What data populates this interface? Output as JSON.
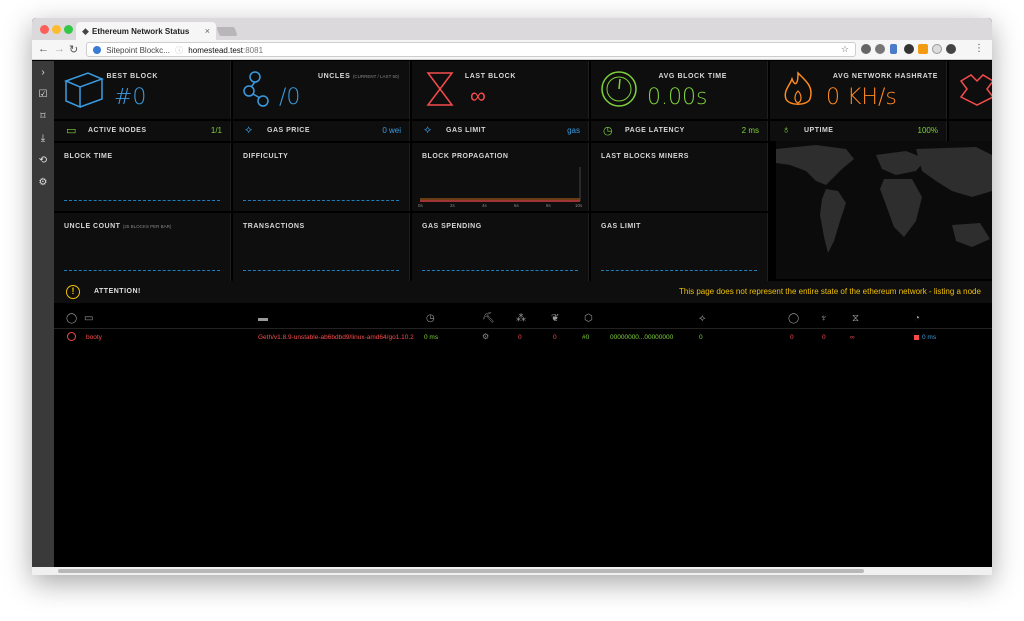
{
  "browser": {
    "tab_title": "Ethereum Network Status",
    "tab_close": "×",
    "site_chip": "Sitepoint Blockc...",
    "url_host": "homestead.test",
    "url_port": ":8081"
  },
  "stats": {
    "best_block": {
      "label": "BEST BLOCK",
      "value": "#0"
    },
    "uncles": {
      "label": "UNCLES",
      "sublabel": "(CURRENT / LAST 50)",
      "value": "/0"
    },
    "last_block": {
      "label": "LAST BLOCK",
      "value": "∞"
    },
    "avg_block_time": {
      "label": "AVG BLOCK TIME",
      "value": "0.00s"
    },
    "avg_hashrate": {
      "label": "AVG NETWORK HASHRATE",
      "value": "0 KH/s"
    }
  },
  "small_stats": {
    "active_nodes": {
      "label": "ACTIVE NODES",
      "value": "1/1"
    },
    "gas_price": {
      "label": "GAS PRICE",
      "value": "0 wei"
    },
    "gas_limit": {
      "label": "GAS LIMIT",
      "value": "gas"
    },
    "page_latency": {
      "label": "PAGE LATENCY",
      "value": "2 ms"
    },
    "uptime": {
      "label": "UPTIME",
      "value": "100%"
    }
  },
  "charts": {
    "block_time": "BLOCK TIME",
    "difficulty": "DIFFICULTY",
    "block_propagation": "BLOCK PROPAGATION",
    "last_blocks_miners": "LAST BLOCKS MINERS",
    "uncle_count": "UNCLE COUNT",
    "uncle_count_sub": "(25 BLOCKS PER BAR)",
    "transactions": "TRANSACTIONS",
    "gas_spending": "GAS SPENDING",
    "gas_limit": "GAS LIMIT",
    "propagation_ticks": [
      "0s",
      "2s",
      "4s",
      "6s",
      "8s",
      "10s"
    ]
  },
  "attention": {
    "label": "ATTENTION!",
    "message": "This page does not represent the entire state of the ethereum network - listing a node"
  },
  "nodes": [
    {
      "name": "booty",
      "type": "Geth/v1.8.9-unstable-ab6bdbd9/linux-amd64/go1.10.2",
      "latency": "0 ms",
      "peers": "0",
      "pending": "0",
      "block": "#0",
      "hash": "00000000...00000000",
      "difficulty": "0",
      "block_tx": "0",
      "uncles": "0",
      "last_block": "∞",
      "propagation": "0 ms"
    }
  ],
  "colors": {
    "blue": "#3b9be0",
    "green": "#7fd13b",
    "red": "#f74b4b",
    "orange": "#ff8a1f",
    "yellow": "#f0c000"
  }
}
